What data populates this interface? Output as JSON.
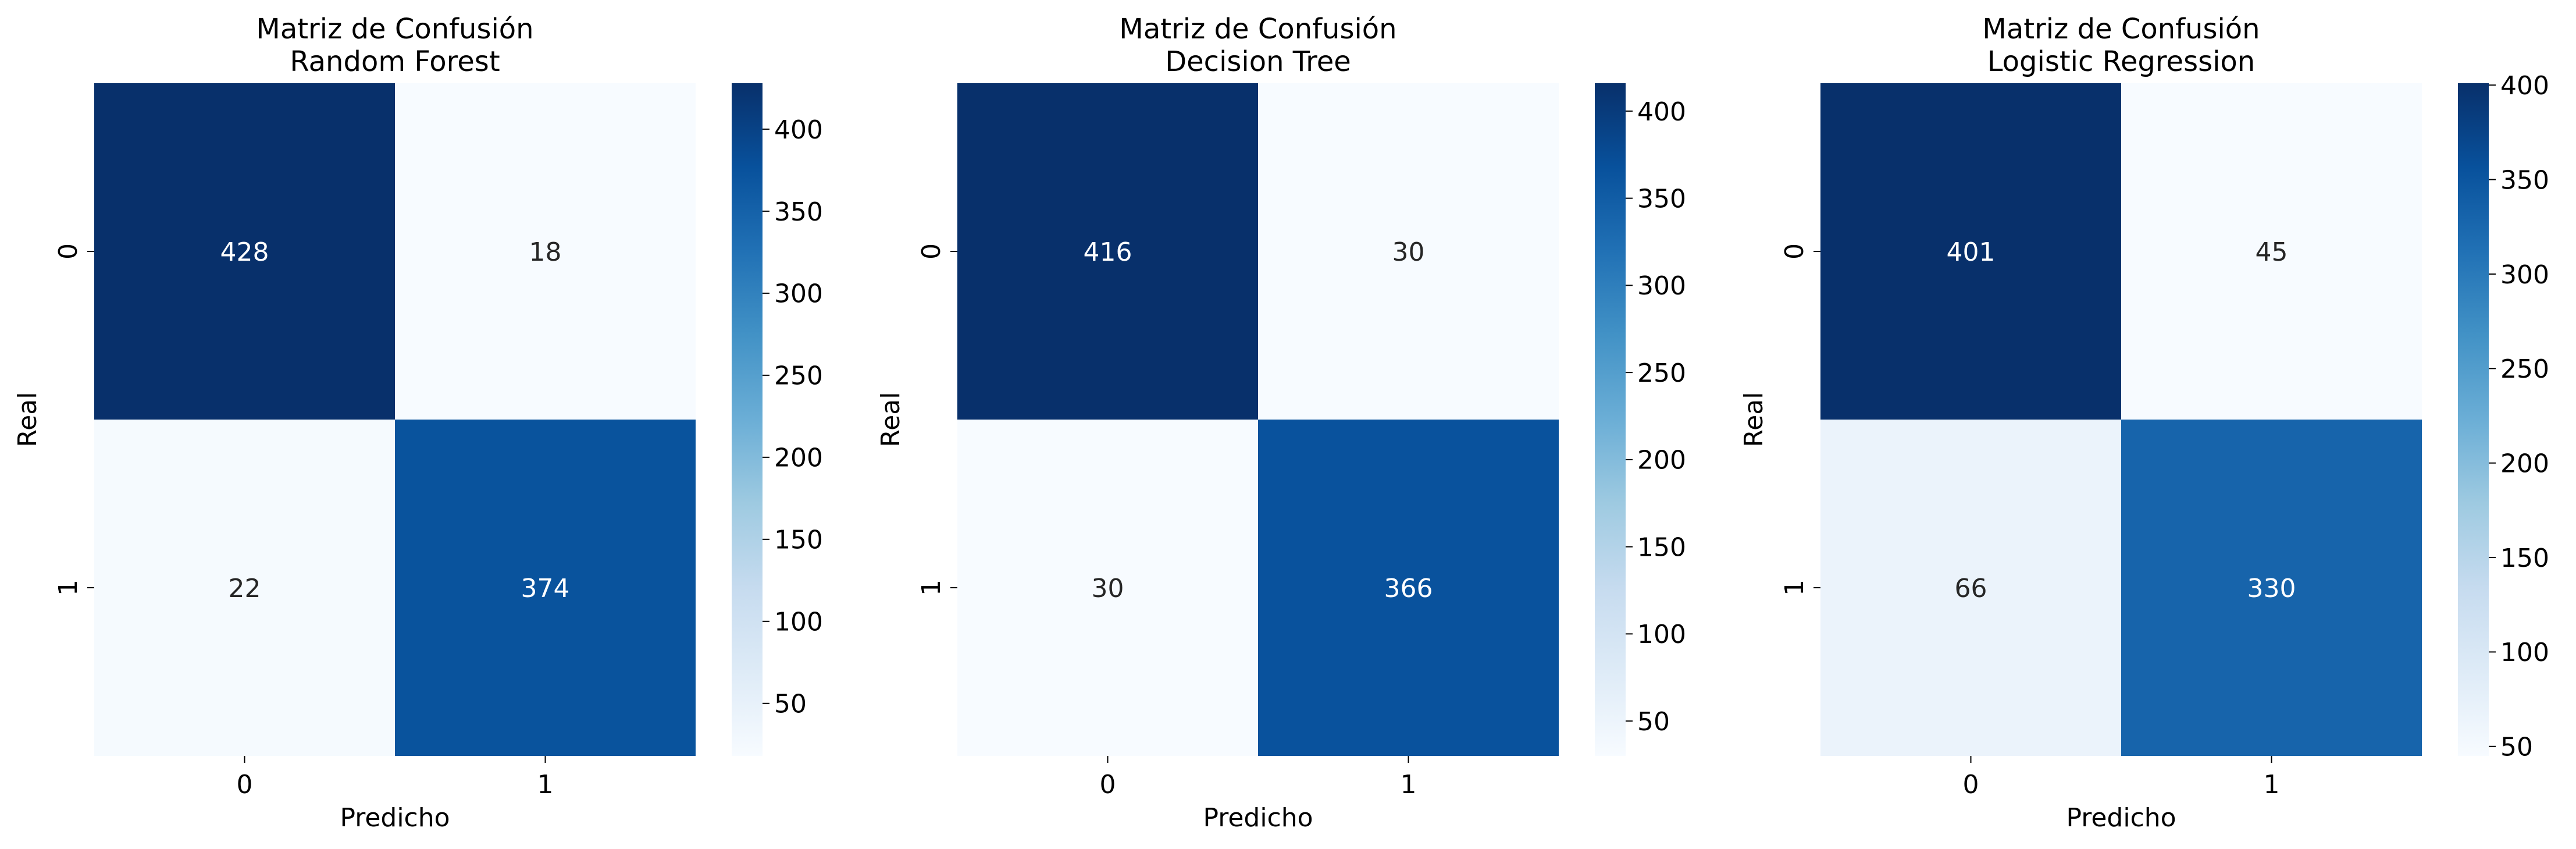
{
  "colormap": {
    "name": "Blues",
    "stops": [
      "#f7fbff",
      "#deebf7",
      "#c6dbef",
      "#9ecae1",
      "#6baed6",
      "#4292c6",
      "#2171b5",
      "#08519c",
      "#08306b"
    ]
  },
  "text_colors": {
    "dark_cell": "#ffffff",
    "light_cell": "#262626"
  },
  "chart_data": [
    {
      "type": "heatmap",
      "title": "Matriz de Confusión\nRandom Forest",
      "xlabel": "Predicho",
      "ylabel": "Real",
      "x_categories": [
        "0",
        "1"
      ],
      "y_categories": [
        "0",
        "1"
      ],
      "values": [
        [
          428,
          18
        ],
        [
          22,
          374
        ]
      ],
      "colorbar": {
        "range": [
          18,
          428
        ],
        "ticks": [
          50,
          100,
          150,
          200,
          250,
          300,
          350,
          400
        ]
      }
    },
    {
      "type": "heatmap",
      "title": "Matriz de Confusión\nDecision Tree",
      "xlabel": "Predicho",
      "ylabel": "Real",
      "x_categories": [
        "0",
        "1"
      ],
      "y_categories": [
        "0",
        "1"
      ],
      "values": [
        [
          416,
          30
        ],
        [
          30,
          366
        ]
      ],
      "colorbar": {
        "range": [
          30,
          416
        ],
        "ticks": [
          50,
          100,
          150,
          200,
          250,
          300,
          350,
          400
        ]
      }
    },
    {
      "type": "heatmap",
      "title": "Matriz de Confusión\nLogistic Regression",
      "xlabel": "Predicho",
      "ylabel": "Real",
      "x_categories": [
        "0",
        "1"
      ],
      "y_categories": [
        "0",
        "1"
      ],
      "values": [
        [
          401,
          45
        ],
        [
          66,
          330
        ]
      ],
      "colorbar": {
        "range": [
          45,
          401
        ],
        "ticks": [
          50,
          100,
          150,
          200,
          250,
          300,
          350,
          400
        ]
      }
    }
  ]
}
